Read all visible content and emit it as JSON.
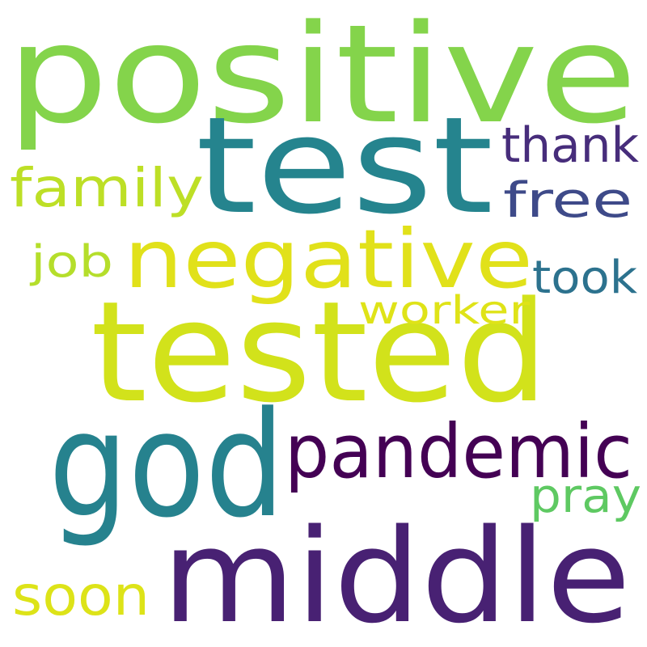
{
  "words": [
    {
      "text": "positive",
      "color": "#84d44b"
    },
    {
      "text": "test",
      "color": "#25848e"
    },
    {
      "text": "tested",
      "color": "#d2e21b"
    },
    {
      "text": "god",
      "color": "#26828e"
    },
    {
      "text": "middle",
      "color": "#482173"
    },
    {
      "text": "negative",
      "color": "#e1e11a"
    },
    {
      "text": "pandemic",
      "color": "#440154"
    },
    {
      "text": "family",
      "color": "#bddf26"
    },
    {
      "text": "thank",
      "color": "#472d7b"
    },
    {
      "text": "free",
      "color": "#3e4a89"
    },
    {
      "text": "took",
      "color": "#2c728e"
    },
    {
      "text": "job",
      "color": "#b5de2b"
    },
    {
      "text": "worker",
      "color": "#dfe318"
    },
    {
      "text": "pray",
      "color": "#5ec962"
    },
    {
      "text": "soon",
      "color": "#dde318"
    }
  ]
}
